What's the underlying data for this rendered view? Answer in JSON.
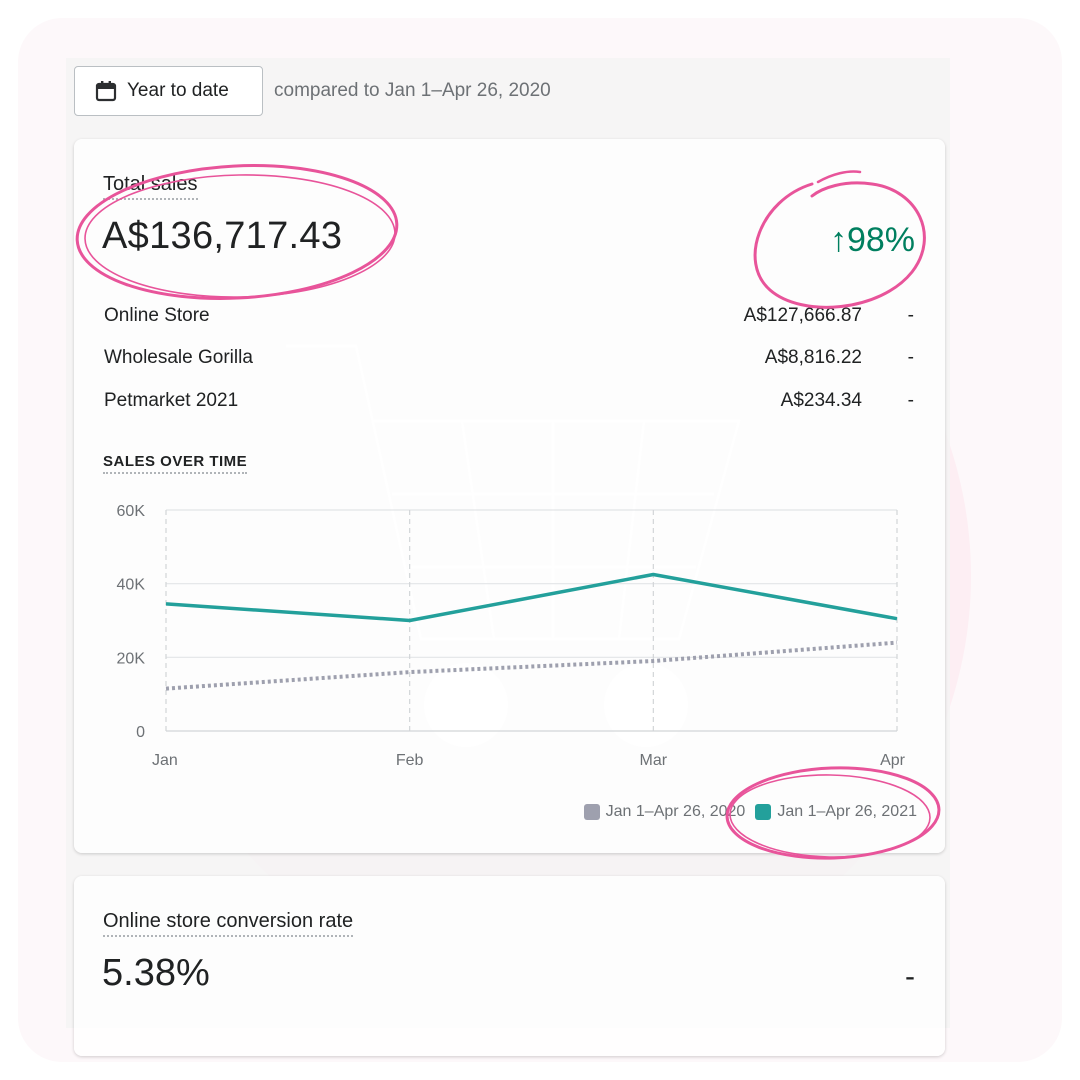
{
  "filter": {
    "date_button_label": "Year to date",
    "compared_text": "compared to Jan 1–Apr 26, 2020"
  },
  "total_sales": {
    "title": "Total sales",
    "value": "A$136,717.43",
    "change": "↑98%",
    "change_color": "#007f5f",
    "channels": [
      {
        "name": "Online Store",
        "amount": "A$127,666.87",
        "change": "-"
      },
      {
        "name": "Wholesale Gorilla",
        "amount": "A$8,816.22",
        "change": "-"
      },
      {
        "name": "Petmarket 2021",
        "amount": "A$234.34",
        "change": "-"
      }
    ]
  },
  "sales_over_time": {
    "title": "SALES OVER TIME"
  },
  "chart_data": {
    "type": "line",
    "categories": [
      "Jan",
      "Feb",
      "Mar",
      "Apr"
    ],
    "y_ticks": [
      "0",
      "20K",
      "40K",
      "60K"
    ],
    "ylim": [
      0,
      60000
    ],
    "grid": true,
    "legend_position": "bottom-right",
    "series": [
      {
        "name": "Jan 1–Apr 26, 2020",
        "color": "#9ea0ae",
        "style": "dotted",
        "values": [
          11500,
          16000,
          19000,
          24000
        ]
      },
      {
        "name": "Jan 1–Apr 26, 2021",
        "color": "#23a09b",
        "style": "solid",
        "values": [
          34500,
          30000,
          42500,
          30500
        ]
      }
    ]
  },
  "conversion": {
    "title": "Online store conversion rate",
    "value": "5.38%",
    "change": "-"
  },
  "annotation_color": "#e8549a",
  "icons": [
    "calendar-icon",
    "shopping-cart-watermark"
  ]
}
